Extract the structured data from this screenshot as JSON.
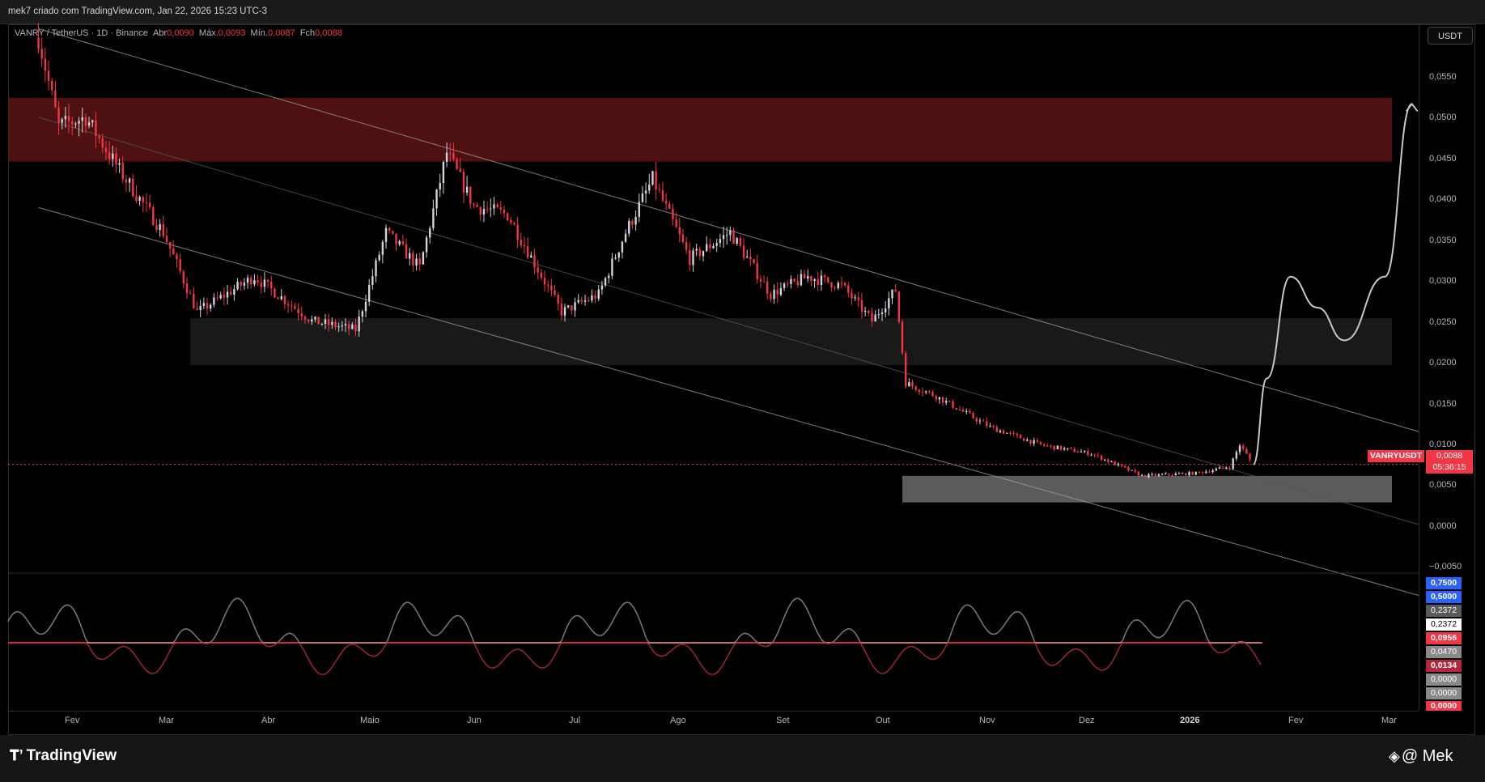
{
  "header": {
    "title": "mek7 criado com TradingView.com, Jan 22, 2026 15:23 UTC-3"
  },
  "legend": {
    "symbol": "VANRY / TetherUS · 1D · Binance",
    "open_label": "Abr",
    "open": "0,0090",
    "high_label": "Máx.",
    "high": "0,0093",
    "low_label": "Mín.",
    "low": "0,0087",
    "close_label": "Fch",
    "close": "0,0088"
  },
  "currency_button": "USDT",
  "price_axis": [
    "0,0550",
    "0,0500",
    "0,0450",
    "0,0400",
    "0,0350",
    "0,0300",
    "0,0250",
    "0,0200",
    "0,0150",
    "0,0100",
    "0,0050",
    "0,0000",
    "−0,0050"
  ],
  "time_axis": [
    "Fev",
    "Mar",
    "Abr",
    "Maio",
    "Jun",
    "Jul",
    "Ago",
    "Set",
    "Out",
    "Nov",
    "Dez",
    "2026",
    "Fev",
    "Mar"
  ],
  "last_price": {
    "symbol": "VANRYUSDT",
    "price": "0,0088",
    "countdown": "05:36:15"
  },
  "indicator_labels": [
    "0,7500",
    "0,5000",
    "0,2372",
    "0,2372",
    "0,0956",
    "0,0470",
    "0,0134",
    "0,0000",
    "0,0000",
    "0,0000"
  ],
  "footer": {
    "brand": "TradingView",
    "author": "@ Mek"
  },
  "colors": {
    "bear": "#f23645",
    "bull": "#d1d4dc",
    "zone_red": "#5a1414",
    "zone_grey": "#6b6b6b",
    "blue": "#2962ff"
  },
  "chart_data": {
    "type": "candlestick",
    "title": "VANRY / TetherUS · 1D · Binance",
    "ylim": [
      -0.0055,
      0.0585
    ],
    "x_range": [
      "2025-01-18",
      "2026-03-12"
    ],
    "grid": false,
    "anchors": [
      {
        "date": "2025-01-27",
        "price": 0.057
      },
      {
        "date": "2025-02-02",
        "price": 0.047
      },
      {
        "date": "2025-02-10",
        "price": 0.048
      },
      {
        "date": "2025-02-20",
        "price": 0.042
      },
      {
        "date": "2025-03-05",
        "price": 0.035
      },
      {
        "date": "2025-03-15",
        "price": 0.026
      },
      {
        "date": "2025-04-01",
        "price": 0.03
      },
      {
        "date": "2025-04-18",
        "price": 0.025
      },
      {
        "date": "2025-05-01",
        "price": 0.024
      },
      {
        "date": "2025-05-10",
        "price": 0.035
      },
      {
        "date": "2025-05-20",
        "price": 0.031
      },
      {
        "date": "2025-05-28",
        "price": 0.044
      },
      {
        "date": "2025-06-05",
        "price": 0.038
      },
      {
        "date": "2025-06-15",
        "price": 0.037
      },
      {
        "date": "2025-07-01",
        "price": 0.026
      },
      {
        "date": "2025-07-12",
        "price": 0.028
      },
      {
        "date": "2025-07-20",
        "price": 0.035
      },
      {
        "date": "2025-07-28",
        "price": 0.041
      },
      {
        "date": "2025-08-08",
        "price": 0.032
      },
      {
        "date": "2025-08-20",
        "price": 0.035
      },
      {
        "date": "2025-09-01",
        "price": 0.028
      },
      {
        "date": "2025-09-12",
        "price": 0.03
      },
      {
        "date": "2025-09-22",
        "price": 0.029
      },
      {
        "date": "2025-10-01",
        "price": 0.025
      },
      {
        "date": "2025-10-08",
        "price": 0.0285
      },
      {
        "date": "2025-10-11",
        "price": 0.018
      },
      {
        "date": "2025-10-20",
        "price": 0.0165
      },
      {
        "date": "2025-11-05",
        "price": 0.013
      },
      {
        "date": "2025-11-20",
        "price": 0.011
      },
      {
        "date": "2025-12-05",
        "price": 0.01
      },
      {
        "date": "2025-12-20",
        "price": 0.0075
      },
      {
        "date": "2026-01-05",
        "price": 0.0078
      },
      {
        "date": "2026-01-15",
        "price": 0.0085
      },
      {
        "date": "2026-01-18",
        "price": 0.011
      },
      {
        "date": "2026-01-22",
        "price": 0.0088
      }
    ],
    "zones": [
      {
        "color": "red",
        "from_date": "2025-01-18",
        "to_date": "2026-03-12",
        "low": 0.043,
        "high": 0.0502
      },
      {
        "color": "dark",
        "from_date": "2025-03-13",
        "to_date": "2026-03-12",
        "low": 0.02,
        "high": 0.0253
      },
      {
        "color": "grey",
        "from_date": "2025-10-10",
        "to_date": "2026-03-12",
        "low": 0.0045,
        "high": 0.0075
      }
    ],
    "channel": [
      {
        "from": {
          "date": "2025-01-27",
          "price": 0.058
        },
        "to": {
          "date": "2026-03-12",
          "price": 0.0125
        }
      },
      {
        "from": {
          "date": "2025-01-27",
          "price": 0.0378
        },
        "to": {
          "date": "2026-03-12",
          "price": -0.006
        }
      },
      {
        "from": {
          "date": "2025-01-27",
          "price": 0.048
        },
        "to": {
          "date": "2026-03-12",
          "price": 0.002
        }
      }
    ],
    "projection": [
      {
        "date": "2026-01-22",
        "price": 0.0088
      },
      {
        "date": "2026-01-26",
        "price": 0.0185
      },
      {
        "date": "2026-02-02",
        "price": 0.03
      },
      {
        "date": "2026-02-10",
        "price": 0.0265
      },
      {
        "date": "2026-02-18",
        "price": 0.0228
      },
      {
        "date": "2026-03-02",
        "price": 0.03
      },
      {
        "date": "2026-03-10",
        "price": 0.0495
      }
    ],
    "last_price_line": 0.0088
  }
}
